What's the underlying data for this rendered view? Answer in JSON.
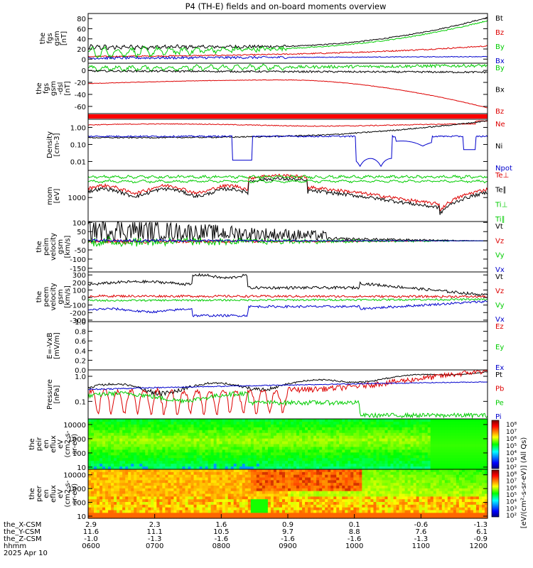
{
  "title": "P4 (TH-E) fields and on-board moments overview",
  "colors": {
    "black": "#000000",
    "red": "#dd0000",
    "green": "#00cc00",
    "blue": "#0000cc",
    "redband": "#ff0000"
  },
  "chart_data": [
    {
      "id": "fgs_gsm",
      "type": "line",
      "ylabel_lines": [
        "the",
        "fgs",
        "gsm",
        "[nT]"
      ],
      "ylim": [
        -8,
        90
      ],
      "yticks": [
        0,
        20,
        40,
        60,
        80
      ],
      "series": [
        {
          "name": "Bt",
          "color": "black",
          "kind": "fgs_bt"
        },
        {
          "name": "Bz",
          "color": "red",
          "kind": "fgs_bz"
        },
        {
          "name": "By",
          "color": "green",
          "kind": "fgs_by"
        },
        {
          "name": "Bx",
          "color": "blue",
          "kind": "fgs_bx"
        }
      ]
    },
    {
      "id": "fgs_dsl",
      "type": "line",
      "ylabel_lines": [
        "the",
        "fgs",
        "gsm",
        "-dsl",
        "[nT]"
      ],
      "ylim": [
        -72,
        12
      ],
      "yticks": [
        0,
        -20,
        -40,
        -60
      ],
      "series": [
        {
          "name": "By",
          "color": "green",
          "kind": "dsl_by"
        },
        {
          "name": "Bx",
          "color": "black",
          "kind": "dsl_bx"
        },
        {
          "name": "Bz",
          "color": "red",
          "kind": "dsl_bz"
        }
      ]
    },
    {
      "id": "band",
      "type": "bar",
      "ylabel_lines": []
    },
    {
      "id": "density",
      "type": "line",
      "ylabel_lines": [
        "Density",
        "[cm-3]"
      ],
      "log": true,
      "ylim": [
        0.003,
        3
      ],
      "yticks": [
        1.0,
        0.1,
        0.01
      ],
      "ytick_labels": [
        "1.00",
        "0.10",
        "0.01"
      ],
      "series": [
        {
          "name": "Ne",
          "color": "red",
          "kind": "ne"
        },
        {
          "name": "Ni",
          "color": "black",
          "kind": "ni"
        },
        {
          "name": "Npot",
          "color": "blue",
          "kind": "npot"
        }
      ]
    },
    {
      "id": "temperature",
      "type": "line",
      "ylabel_lines": [
        "mom",
        "[eV]"
      ],
      "log": true,
      "ylim": [
        120,
        11000
      ],
      "yticks": [
        1000
      ],
      "ytick_labels": [
        "1000"
      ],
      "series": [
        {
          "name": "Te⊥",
          "color": "red",
          "kind": "te_perp"
        },
        {
          "name": "Te∥",
          "color": "black",
          "kind": "te_par"
        },
        {
          "name": "Ti⊥",
          "color": "green",
          "kind": "ti_perp"
        },
        {
          "name": "Ti∥",
          "color": "green",
          "kind": "ti_par"
        }
      ]
    },
    {
      "id": "peim_velocity",
      "type": "line",
      "ylabel_lines": [
        "the",
        "peim",
        "velocity",
        "gsm",
        "[km/s]"
      ],
      "ylim": [
        -170,
        105
      ],
      "yticks": [
        100,
        50,
        0,
        -50,
        -100,
        -150
      ],
      "series": [
        {
          "name": "Vt",
          "color": "black",
          "kind": "vi_t"
        },
        {
          "name": "Vz",
          "color": "red",
          "kind": "vi_z"
        },
        {
          "name": "Vy",
          "color": "green",
          "kind": "vi_y"
        },
        {
          "name": "Vx",
          "color": "blue",
          "kind": "vi_x"
        }
      ]
    },
    {
      "id": "peem_velocity",
      "type": "line",
      "ylabel_lines": [
        "the",
        "peem",
        "velocity",
        "gsm",
        "[km/s]"
      ],
      "ylim": [
        -320,
        340
      ],
      "yticks": [
        300,
        200,
        100,
        0,
        -100,
        -200,
        -300
      ],
      "series": [
        {
          "name": "Vt",
          "color": "black",
          "kind": "ve_t"
        },
        {
          "name": "Vz",
          "color": "red",
          "kind": "ve_z"
        },
        {
          "name": "Vy",
          "color": "green",
          "kind": "ve_y"
        },
        {
          "name": "Vx",
          "color": "blue",
          "kind": "ve_x"
        }
      ]
    },
    {
      "id": "efield",
      "type": "line",
      "ylabel_lines": [
        "E=-VxB",
        "[mV/m]"
      ],
      "ylim": [
        0,
        1
      ],
      "yticks": [
        1.0,
        0.8,
        0.6,
        0.4,
        0.2,
        0.0
      ],
      "ytick_labels": [
        "1.0",
        "0.8",
        "0.6",
        "0.4",
        "0.2",
        "0.0"
      ],
      "series": [
        {
          "name": "Ez",
          "color": "red",
          "kind": "none"
        },
        {
          "name": "Ey",
          "color": "green",
          "kind": "none"
        },
        {
          "name": "Ex",
          "color": "blue",
          "kind": "none"
        }
      ]
    },
    {
      "id": "pressure",
      "type": "line",
      "ylabel_lines": [
        "Pressure",
        "[nPa]"
      ],
      "log": true,
      "ylim": [
        0.02,
        1.8
      ],
      "yticks": [
        1.0,
        0.1
      ],
      "ytick_labels": [
        "1.0",
        "0.1"
      ],
      "series": [
        {
          "name": "Pt",
          "color": "black",
          "kind": "pt"
        },
        {
          "name": "Pb",
          "color": "red",
          "kind": "pb"
        },
        {
          "name": "Pe",
          "color": "green",
          "kind": "pe"
        },
        {
          "name": "Pi",
          "color": "blue",
          "kind": "pi"
        }
      ]
    },
    {
      "id": "peir_spectrogram",
      "type": "heatmap",
      "ylabel_lines": [
        "the",
        "peir",
        "en",
        "eflux",
        "eV",
        "(cm2-s-",
        "sr-eV)"
      ],
      "log": true,
      "ylim": [
        7,
        25000
      ],
      "yticks": [
        10000,
        1000,
        100,
        10
      ],
      "ytick_labels": [
        "10000",
        "1000",
        "100",
        "10"
      ],
      "kind": "ion_spec"
    },
    {
      "id": "peer_spectrogram",
      "type": "heatmap",
      "ylabel_lines": [
        "the",
        "peer",
        "en",
        "eflux",
        "eV",
        "(cm2-s-",
        "sr-eV)"
      ],
      "log": true,
      "ylim": [
        7,
        25000
      ],
      "yticks": [
        10000,
        1000,
        100,
        10
      ],
      "ytick_labels": [
        "10000",
        "1000",
        "100",
        "10"
      ],
      "kind": "ele_spec"
    }
  ],
  "colorbar": {
    "label": "[eV/(cm²-s-sr-eV)] (All Qs)",
    "top_labels": [
      "10⁸",
      "10⁷",
      "10⁶",
      "10⁵",
      "10⁴",
      "10³",
      "10²"
    ],
    "bottom_labels": [
      "10⁸",
      "10⁷",
      "10⁶",
      "10⁵",
      "10⁴",
      "10³",
      "10²"
    ]
  },
  "xaxis": {
    "row_labels": [
      "the_X-CSM",
      "the_Y-CSM",
      "the_Z-CSM",
      "hhmm",
      "2025 Apr 10"
    ],
    "columns": [
      {
        "x_csm": "2.9",
        "y_csm": "11.6",
        "z_csm": "-1.0",
        "hhmm": "0600"
      },
      {
        "x_csm": "2.3",
        "y_csm": "11.1",
        "z_csm": "-1.3",
        "hhmm": "0700"
      },
      {
        "x_csm": "1.6",
        "y_csm": "10.5",
        "z_csm": "-1.6",
        "hhmm": "0800"
      },
      {
        "x_csm": "0.9",
        "y_csm": "9.7",
        "z_csm": "-1.6",
        "hhmm": "0900"
      },
      {
        "x_csm": "0.1",
        "y_csm": "8.8",
        "z_csm": "-1.6",
        "hhmm": "1000"
      },
      {
        "x_csm": "-0.6",
        "y_csm": "7.6",
        "z_csm": "-1.3",
        "hhmm": "1100"
      },
      {
        "x_csm": "-1.3",
        "y_csm": "6.1",
        "z_csm": "-0.9",
        "hhmm": "1200"
      }
    ]
  }
}
